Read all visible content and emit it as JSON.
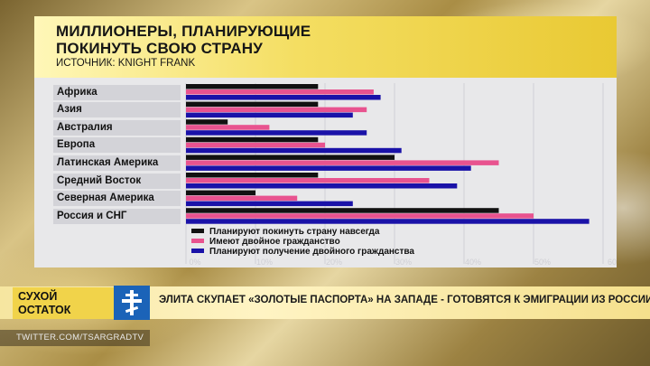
{
  "chart_data": {
    "type": "bar",
    "title": [
      "МИЛЛИОНЕРЫ, ПЛАНИРУЮЩИЕ",
      "ПОКИНУТЬ СВОЮ СТРАНУ"
    ],
    "source": "ИСТОЧНИК: KNIGHT FRANK",
    "categories": [
      "Африка",
      "Азия",
      "Австралия",
      "Европа",
      "Латинская Америка",
      "Средний Восток",
      "Северная Америка",
      "Россия и СНГ"
    ],
    "series": [
      {
        "name": "Планируют покинуть страну навсегда",
        "color": "#111111",
        "values": [
          19,
          19,
          6,
          19,
          30,
          19,
          10,
          45
        ]
      },
      {
        "name": "Имеют двойное гражданство",
        "color": "#e8538f",
        "values": [
          27,
          26,
          12,
          20,
          45,
          35,
          16,
          50
        ]
      },
      {
        "name": "Планируют получение двойного гражданства",
        "color": "#1a12a8",
        "values": [
          28,
          24,
          26,
          31,
          41,
          39,
          24,
          58
        ]
      }
    ],
    "xticks": [
      "0%",
      "10%",
      "20%",
      "30%",
      "40%",
      "50%",
      "60"
    ],
    "xlim": [
      0,
      60
    ],
    "orientation": "horizontal",
    "legend_position": "bottom"
  },
  "ticker": {
    "brand_line1": "СУХОЙ",
    "brand_line2": "ОСТАТОК",
    "headline": "ЭЛИТА СКУПАЕТ «ЗОЛОТЫЕ ПАСПОРТА» НА ЗАПАДЕ - ГОТОВЯТСЯ К ЭМИГРАЦИИ ИЗ РОССИИ?",
    "handle": "TWITTER.COM/TSARGRADTV",
    "logo_icon": "orthodox-cross-icon"
  }
}
